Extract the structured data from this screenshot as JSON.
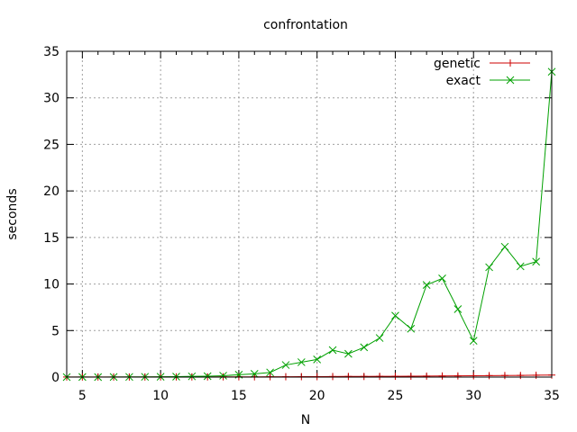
{
  "chart_data": {
    "type": "line",
    "title": "confrontation",
    "xlabel": "N",
    "ylabel": "seconds",
    "xlim": [
      4,
      35
    ],
    "ylim": [
      0,
      35
    ],
    "xticks": [
      5,
      10,
      15,
      20,
      25,
      30,
      35
    ],
    "yticks": [
      0,
      5,
      10,
      15,
      20,
      25,
      30,
      35
    ],
    "grid": true,
    "legend_position": "top-right",
    "x": [
      4,
      5,
      6,
      7,
      8,
      9,
      10,
      11,
      12,
      13,
      14,
      15,
      16,
      17,
      18,
      19,
      20,
      21,
      22,
      23,
      24,
      25,
      26,
      27,
      28,
      29,
      30,
      31,
      32,
      33,
      34,
      35
    ],
    "series": [
      {
        "name": "genetic",
        "color": "#cc0000",
        "marker": "plus",
        "values": [
          0.01,
          0.01,
          0.01,
          0.01,
          0.01,
          0.01,
          0.02,
          0.02,
          0.02,
          0.02,
          0.03,
          0.03,
          0.03,
          0.04,
          0.04,
          0.05,
          0.05,
          0.06,
          0.07,
          0.07,
          0.08,
          0.09,
          0.1,
          0.11,
          0.12,
          0.13,
          0.14,
          0.16,
          0.17,
          0.18,
          0.2,
          0.22
        ]
      },
      {
        "name": "exact",
        "color": "#00a000",
        "marker": "cross",
        "values": [
          0.0,
          0.01,
          0.0,
          0.01,
          0.02,
          0.03,
          0.04,
          0.05,
          0.08,
          0.1,
          0.15,
          0.25,
          0.35,
          0.5,
          1.3,
          1.6,
          1.9,
          2.9,
          2.5,
          3.2,
          4.2,
          6.6,
          5.2,
          9.9,
          10.6,
          7.3,
          3.9,
          11.8,
          14.0,
          11.9,
          12.4,
          32.8
        ]
      }
    ]
  }
}
